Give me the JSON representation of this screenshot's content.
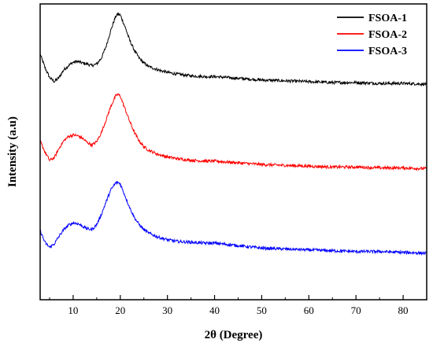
{
  "chart_data": {
    "type": "line",
    "title": "",
    "xlabel": "2θ (Degree)",
    "ylabel": "Intensity (a.u)",
    "xlim": [
      3,
      85
    ],
    "xticks": [
      10,
      20,
      30,
      40,
      50,
      60,
      70,
      80
    ],
    "yticks_visible": false,
    "grid": false,
    "legend": "top-right",
    "series": [
      {
        "name": "FSOA-1",
        "color": "#000000",
        "offset": 2.0,
        "x": [
          3,
          4,
          5,
          6,
          7,
          8,
          9,
          10,
          11,
          12,
          13,
          14,
          15,
          16,
          17,
          18,
          19,
          19.5,
          20,
          21,
          22,
          23,
          24,
          25,
          26,
          28,
          30,
          32,
          35,
          38,
          40,
          45,
          50,
          55,
          60,
          65,
          70,
          75,
          80,
          85
        ],
        "y": [
          0.36,
          0.2,
          0.08,
          0.03,
          0.08,
          0.17,
          0.22,
          0.26,
          0.27,
          0.25,
          0.24,
          0.22,
          0.24,
          0.31,
          0.45,
          0.64,
          0.8,
          0.83,
          0.82,
          0.68,
          0.52,
          0.4,
          0.31,
          0.25,
          0.21,
          0.17,
          0.14,
          0.12,
          0.1,
          0.09,
          0.09,
          0.07,
          0.05,
          0.04,
          0.03,
          0.02,
          0.02,
          0.01,
          0.01,
          0.0
        ]
      },
      {
        "name": "FSOA-2",
        "color": "#ff0000",
        "offset": 1.0,
        "x": [
          3,
          4,
          5,
          6,
          7,
          8,
          9,
          10,
          11,
          12,
          13,
          14,
          15,
          16,
          17,
          18,
          19,
          19.5,
          20,
          21,
          22,
          23,
          24,
          25,
          26,
          28,
          30,
          32,
          35,
          38,
          40,
          45,
          50,
          55,
          60,
          65,
          70,
          75,
          80,
          85
        ],
        "y": [
          0.33,
          0.2,
          0.1,
          0.13,
          0.24,
          0.33,
          0.38,
          0.4,
          0.39,
          0.36,
          0.31,
          0.28,
          0.32,
          0.43,
          0.58,
          0.74,
          0.86,
          0.88,
          0.86,
          0.71,
          0.56,
          0.43,
          0.33,
          0.26,
          0.22,
          0.17,
          0.14,
          0.12,
          0.1,
          0.09,
          0.09,
          0.07,
          0.05,
          0.04,
          0.03,
          0.02,
          0.02,
          0.01,
          0.01,
          0.0
        ]
      },
      {
        "name": "FSOA-3",
        "color": "#0000ff",
        "offset": 0.0,
        "x": [
          3,
          4,
          5,
          6,
          7,
          8,
          9,
          10,
          11,
          12,
          13,
          14,
          15,
          16,
          17,
          18,
          19,
          19.5,
          20,
          21,
          22,
          23,
          24,
          25,
          26,
          28,
          30,
          32,
          35,
          38,
          40,
          45,
          50,
          55,
          60,
          65,
          70,
          75,
          80,
          85
        ],
        "y": [
          0.27,
          0.13,
          0.07,
          0.11,
          0.2,
          0.28,
          0.33,
          0.36,
          0.35,
          0.32,
          0.29,
          0.28,
          0.34,
          0.46,
          0.61,
          0.75,
          0.83,
          0.84,
          0.82,
          0.68,
          0.54,
          0.42,
          0.34,
          0.28,
          0.24,
          0.19,
          0.16,
          0.14,
          0.13,
          0.12,
          0.12,
          0.09,
          0.06,
          0.05,
          0.04,
          0.03,
          0.02,
          0.02,
          0.01,
          0.0
        ]
      }
    ]
  }
}
